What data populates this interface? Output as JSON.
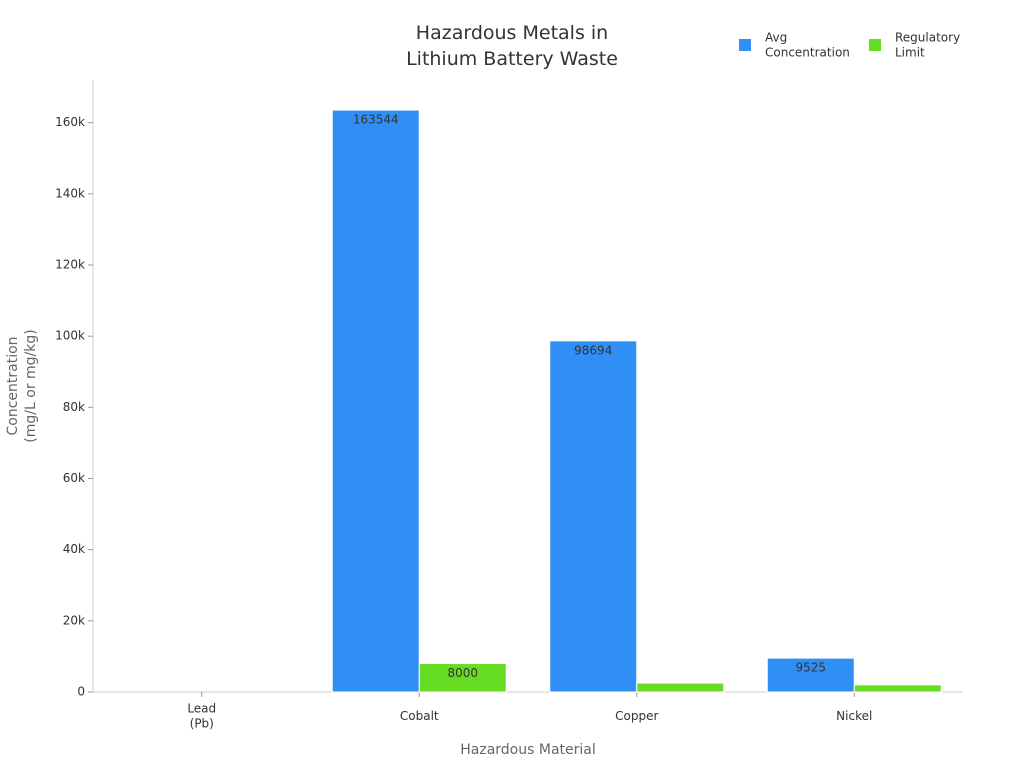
{
  "chart_data": {
    "type": "bar",
    "title": "Hazardous Metals in\nLithium Battery Waste",
    "x_label": "Hazardous Material",
    "y_label": "Concentration\n(mg/L or mg/kg)",
    "categories": [
      "Lead\n(Pb)",
      "Cobalt",
      "Copper",
      "Nickel"
    ],
    "series": [
      {
        "name": "Avg\nConcentration",
        "color": "#2f8ff5",
        "values": [
          0,
          163544,
          98694,
          9525
        ]
      },
      {
        "name": "Regulatory\nLimit",
        "color": "#66dd22",
        "values": [
          0,
          8000,
          2500,
          2000
        ]
      }
    ],
    "ylim": [
      0,
      172000
    ],
    "yticks": [
      0,
      {
        "value": 20000,
        "label": "20k"
      },
      {
        "value": 40000,
        "label": "40k"
      },
      {
        "value": 60000,
        "label": "60k"
      },
      {
        "value": 80000,
        "label": "80k"
      },
      {
        "value": 100000,
        "label": "100k"
      },
      {
        "value": 120000,
        "label": "120k"
      },
      {
        "value": 140000,
        "label": "140k"
      },
      {
        "value": 160000,
        "label": "160k"
      }
    ],
    "legend": "top-right",
    "grid": false
  }
}
